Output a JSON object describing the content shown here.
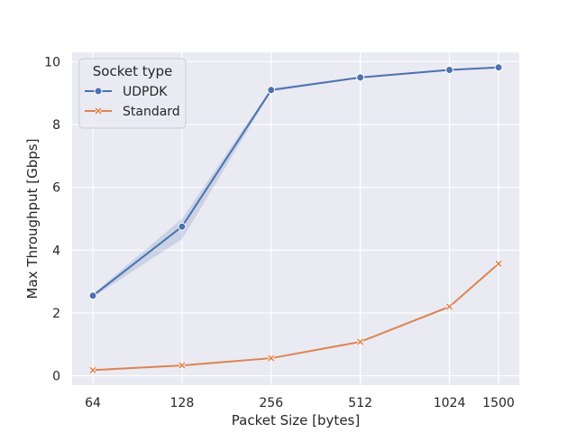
{
  "chart_data": {
    "type": "line",
    "title": "",
    "xlabel": "Packet Size [bytes]",
    "ylabel": "Max Throughput [Gbps]",
    "x_scale": "log2",
    "x": [
      64,
      128,
      256,
      512,
      1024,
      1500
    ],
    "x_tick_labels": [
      "64",
      "128",
      "256",
      "512",
      "1024",
      "1500"
    ],
    "y_ticks": [
      0,
      2,
      4,
      6,
      8,
      10
    ],
    "ylim": [
      -0.3,
      10.3
    ],
    "grid": true,
    "legend": {
      "title": "Socket type",
      "placement": "top-left"
    },
    "series": [
      {
        "name": "UDPDK",
        "color": "#4c72b0",
        "marker": "circle",
        "values": [
          2.55,
          4.75,
          9.1,
          9.5,
          9.74,
          9.82
        ],
        "ci_low": [
          2.5,
          4.35,
          9.05,
          9.48,
          9.72,
          9.8
        ],
        "ci_high": [
          2.6,
          5.0,
          9.15,
          9.53,
          9.77,
          9.85
        ]
      },
      {
        "name": "Standard",
        "color": "#dd8452",
        "marker": "x",
        "values": [
          0.18,
          0.33,
          0.56,
          1.08,
          2.2,
          3.57
        ],
        "ci_low": [
          0.17,
          0.32,
          0.55,
          1.06,
          2.18,
          3.54
        ],
        "ci_high": [
          0.19,
          0.34,
          0.57,
          1.1,
          2.22,
          3.6
        ]
      }
    ]
  }
}
